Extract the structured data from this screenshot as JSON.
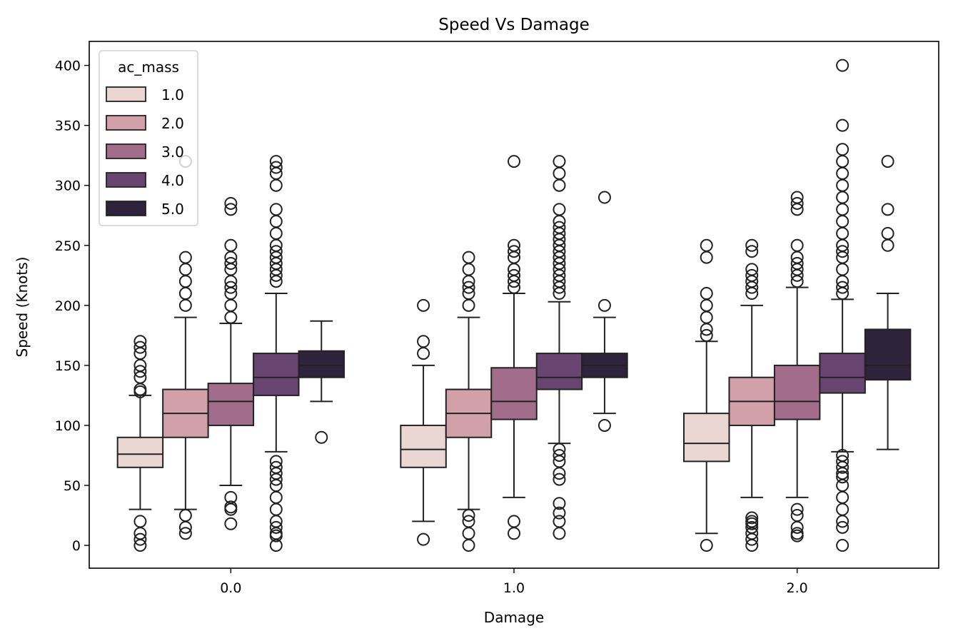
{
  "chart_data": {
    "type": "box",
    "title": "Speed Vs Damage",
    "xlabel": "Damage",
    "ylabel": "Speed (Knots)",
    "ylim": [
      -19,
      420
    ],
    "yticks": [
      0,
      50,
      100,
      150,
      200,
      250,
      300,
      350,
      400
    ],
    "categories": [
      "0.0",
      "1.0",
      "2.0"
    ],
    "legend": {
      "title": "ac_mass",
      "placement": "top-left",
      "entries": [
        "1.0",
        "2.0",
        "3.0",
        "4.0",
        "5.0"
      ]
    },
    "colors": [
      "#ead6d2",
      "#d1a0a9",
      "#a26d8b",
      "#684570",
      "#2f223b"
    ],
    "series": [
      {
        "name": "1.0",
        "boxes": [
          {
            "q1": 65,
            "median": 76,
            "q3": 90,
            "whisker_low": 30,
            "whisker_high": 125,
            "outliers": [
              128,
              130,
              140,
              145,
              150,
              160,
              165,
              170,
              0,
              5,
              10,
              20
            ]
          },
          {
            "q1": 65,
            "median": 80,
            "q3": 100,
            "whisker_low": 20,
            "whisker_high": 150,
            "outliers": [
              160,
              170,
              200,
              5
            ]
          },
          {
            "q1": 70,
            "median": 85,
            "q3": 110,
            "whisker_low": 10,
            "whisker_high": 170,
            "outliers": [
              175,
              180,
              190,
              200,
              210,
              240,
              250,
              0
            ]
          }
        ]
      },
      {
        "name": "2.0",
        "boxes": [
          {
            "q1": 90,
            "median": 110,
            "q3": 130,
            "whisker_low": 30,
            "whisker_high": 190,
            "outliers": [
              200,
              210,
              220,
              230,
              240,
              320,
              10,
              15,
              25
            ]
          },
          {
            "q1": 90,
            "median": 110,
            "q3": 130,
            "whisker_low": 30,
            "whisker_high": 190,
            "outliers": [
              200,
              210,
              215,
              220,
              230,
              240,
              0,
              10,
              20,
              25
            ]
          },
          {
            "q1": 100,
            "median": 120,
            "q3": 140,
            "whisker_low": 40,
            "whisker_high": 200,
            "outliers": [
              210,
              215,
              220,
              225,
              230,
              245,
              250,
              0,
              5,
              10,
              15,
              18,
              20,
              23
            ]
          }
        ]
      },
      {
        "name": "3.0",
        "boxes": [
          {
            "q1": 100,
            "median": 120,
            "q3": 135,
            "whisker_low": 50,
            "whisker_high": 185,
            "outliers": [
              190,
              200,
              210,
              215,
              220,
              230,
              235,
              240,
              250,
              280,
              285,
              18,
              30,
              32,
              40
            ]
          },
          {
            "q1": 105,
            "median": 120,
            "q3": 148,
            "whisker_low": 40,
            "whisker_high": 210,
            "outliers": [
              215,
              220,
              225,
              230,
              240,
              245,
              250,
              320,
              10,
              20
            ]
          },
          {
            "q1": 105,
            "median": 120,
            "q3": 150,
            "whisker_low": 40,
            "whisker_high": 215,
            "outliers": [
              220,
              225,
              230,
              235,
              240,
              250,
              280,
              285,
              290,
              8,
              10,
              15,
              25,
              30
            ]
          }
        ]
      },
      {
        "name": "4.0",
        "boxes": [
          {
            "q1": 125,
            "median": 140,
            "q3": 160,
            "whisker_low": 78,
            "whisker_high": 210,
            "outliers": [
              220,
              225,
              230,
              235,
              240,
              245,
              250,
              260,
              270,
              280,
              300,
              310,
              315,
              320,
              0,
              8,
              10,
              15,
              20,
              30,
              40,
              50,
              55,
              60,
              65,
              70
            ]
          },
          {
            "q1": 130,
            "median": 140,
            "q3": 160,
            "whisker_low": 85,
            "whisker_high": 203,
            "outliers": [
              210,
              215,
              220,
              225,
              230,
              235,
              240,
              245,
              250,
              255,
              260,
              265,
              270,
              280,
              300,
              310,
              320,
              10,
              20,
              27,
              35,
              55,
              60,
              70,
              75,
              80
            ]
          },
          {
            "q1": 127,
            "median": 140,
            "q3": 160,
            "whisker_low": 78,
            "whisker_high": 205,
            "outliers": [
              210,
              215,
              220,
              230,
              240,
              245,
              250,
              260,
              270,
              280,
              290,
              300,
              310,
              320,
              330,
              350,
              400,
              0,
              15,
              20,
              30,
              40,
              50,
              57,
              60,
              65,
              70,
              75
            ]
          }
        ]
      },
      {
        "name": "5.0",
        "boxes": [
          {
            "q1": 140,
            "median": 150,
            "q3": 162,
            "whisker_low": 120,
            "whisker_high": 187,
            "outliers": [
              90
            ]
          },
          {
            "q1": 140,
            "median": 150,
            "q3": 160,
            "whisker_low": 110,
            "whisker_high": 190,
            "outliers": [
              200,
              290,
              100
            ]
          },
          {
            "q1": 138,
            "median": 150,
            "q3": 180,
            "whisker_low": 80,
            "whisker_high": 210,
            "outliers": [
              250,
              260,
              280,
              320
            ]
          }
        ]
      }
    ]
  }
}
